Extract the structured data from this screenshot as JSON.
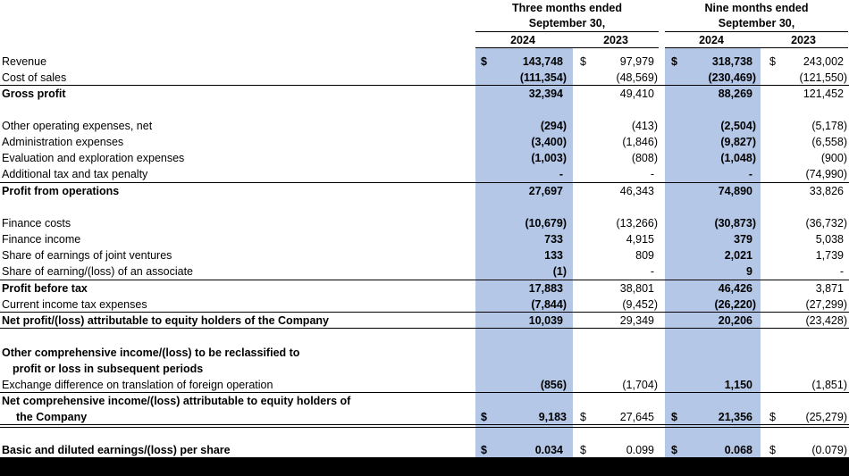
{
  "header": {
    "three_months_title": "Three months ended",
    "three_months_date": "September 30,",
    "nine_months_title": "Nine months ended",
    "nine_months_date": "September 30,",
    "years": [
      "2024",
      "2023",
      "2024",
      "2023"
    ]
  },
  "currency_symbol": "$",
  "rows": [
    {
      "label": "Revenue",
      "values": [
        "143,748",
        "97,979",
        "318,738",
        "243,002"
      ]
    },
    {
      "label": "Cost of sales",
      "values": [
        "(111,354)",
        "(48,569)",
        "(230,469)",
        "(121,550)"
      ]
    },
    {
      "label": "Gross profit",
      "values": [
        "32,394",
        "49,410",
        "88,269",
        "121,452"
      ]
    },
    {
      "label": "Other operating expenses, net",
      "values": [
        "(294)",
        "(413)",
        "(2,504)",
        "(5,178)"
      ]
    },
    {
      "label": "Administration expenses",
      "values": [
        "(3,400)",
        "(1,846)",
        "(9,827)",
        "(6,558)"
      ]
    },
    {
      "label": "Evaluation and exploration expenses",
      "values": [
        "(1,003)",
        "(808)",
        "(1,048)",
        "(900)"
      ]
    },
    {
      "label": "Additional tax and tax penalty",
      "values": [
        "-",
        "-",
        "-",
        "(74,990)"
      ]
    },
    {
      "label": "Profit from operations",
      "values": [
        "27,697",
        "46,343",
        "74,890",
        "33,826"
      ]
    },
    {
      "label": "Finance costs",
      "values": [
        "(10,679)",
        "(13,266)",
        "(30,873)",
        "(36,732)"
      ]
    },
    {
      "label": "Finance income",
      "values": [
        "733",
        "4,915",
        "379",
        "5,038"
      ]
    },
    {
      "label": "Share of earnings of joint ventures",
      "values": [
        "133",
        "809",
        "2,021",
        "1,739"
      ]
    },
    {
      "label": "Share of earning/(loss) of an associate",
      "values": [
        "(1)",
        "-",
        "9",
        "-"
      ]
    },
    {
      "label": "Profit before tax",
      "values": [
        "17,883",
        "38,801",
        "46,426",
        "3,871"
      ]
    },
    {
      "label": "Current income tax expenses",
      "values": [
        "(7,844)",
        "(9,452)",
        "(26,220)",
        "(27,299)"
      ]
    },
    {
      "label": "Net profit/(loss) attributable to equity holders of the Company",
      "values": [
        "10,039",
        "29,349",
        "20,206",
        "(23,428)"
      ]
    },
    {
      "label_lines": [
        "Other comprehensive income/(loss) to be reclassified to",
        "profit or loss in subsequent periods"
      ]
    },
    {
      "label": "Exchange difference on translation of foreign operation",
      "values": [
        "(856)",
        "(1,704)",
        "1,150",
        "(1,851)"
      ]
    },
    {
      "label_lines": [
        "Net comprehensive income/(loss) attributable to equity holders of",
        "the Company"
      ],
      "values": [
        "9,183",
        "27,645",
        "21,356",
        "(25,279)"
      ]
    },
    {
      "label": "Basic and diluted earnings/(loss) per share",
      "values": [
        "0.034",
        "0.099",
        "0.068",
        "(0.079)"
      ]
    }
  ]
}
